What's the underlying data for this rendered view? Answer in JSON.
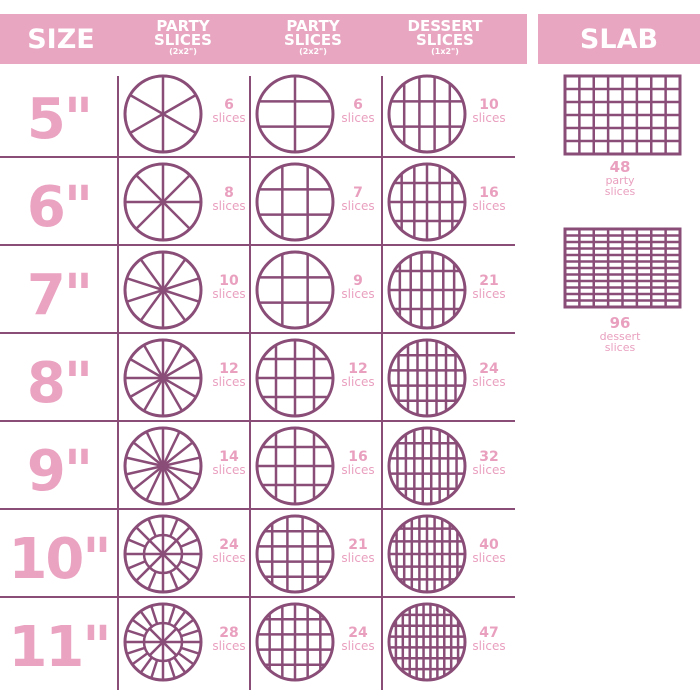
{
  "header": {
    "size": "SIZE",
    "col1": {
      "title1": "PARTY",
      "title2": "SLICES",
      "sub": "(2x2\")"
    },
    "col2": {
      "title1": "PARTY",
      "title2": "SLICES",
      "sub": "(2x2\")"
    },
    "col3": {
      "title1": "DESSERT",
      "title2": "SLICES",
      "sub": "(1x2\")"
    },
    "slab": "SLAB"
  },
  "slices_label": "slices",
  "rows": [
    {
      "size": "5\"",
      "party_round": "6",
      "party_grid": "6",
      "dessert": "10"
    },
    {
      "size": "6\"",
      "party_round": "8",
      "party_grid": "7",
      "dessert": "16"
    },
    {
      "size": "7\"",
      "party_round": "10",
      "party_grid": "9",
      "dessert": "21"
    },
    {
      "size": "8\"",
      "party_round": "12",
      "party_grid": "12",
      "dessert": "24"
    },
    {
      "size": "9\"",
      "party_round": "14",
      "party_grid": "16",
      "dessert": "32"
    },
    {
      "size": "10\"",
      "party_round": "24",
      "party_grid": "21",
      "dessert": "40"
    },
    {
      "size": "11\"",
      "party_round": "28",
      "party_grid": "24",
      "dessert": "47"
    }
  ],
  "slab": [
    {
      "count": "48",
      "line1": "party",
      "line2": "slices"
    },
    {
      "count": "96",
      "line1": "dessert",
      "line2": "slices"
    }
  ],
  "colors": {
    "header_pink": "#e8a6c1",
    "text_pink": "#e9a0bf",
    "line_purple": "#8a4d78"
  }
}
